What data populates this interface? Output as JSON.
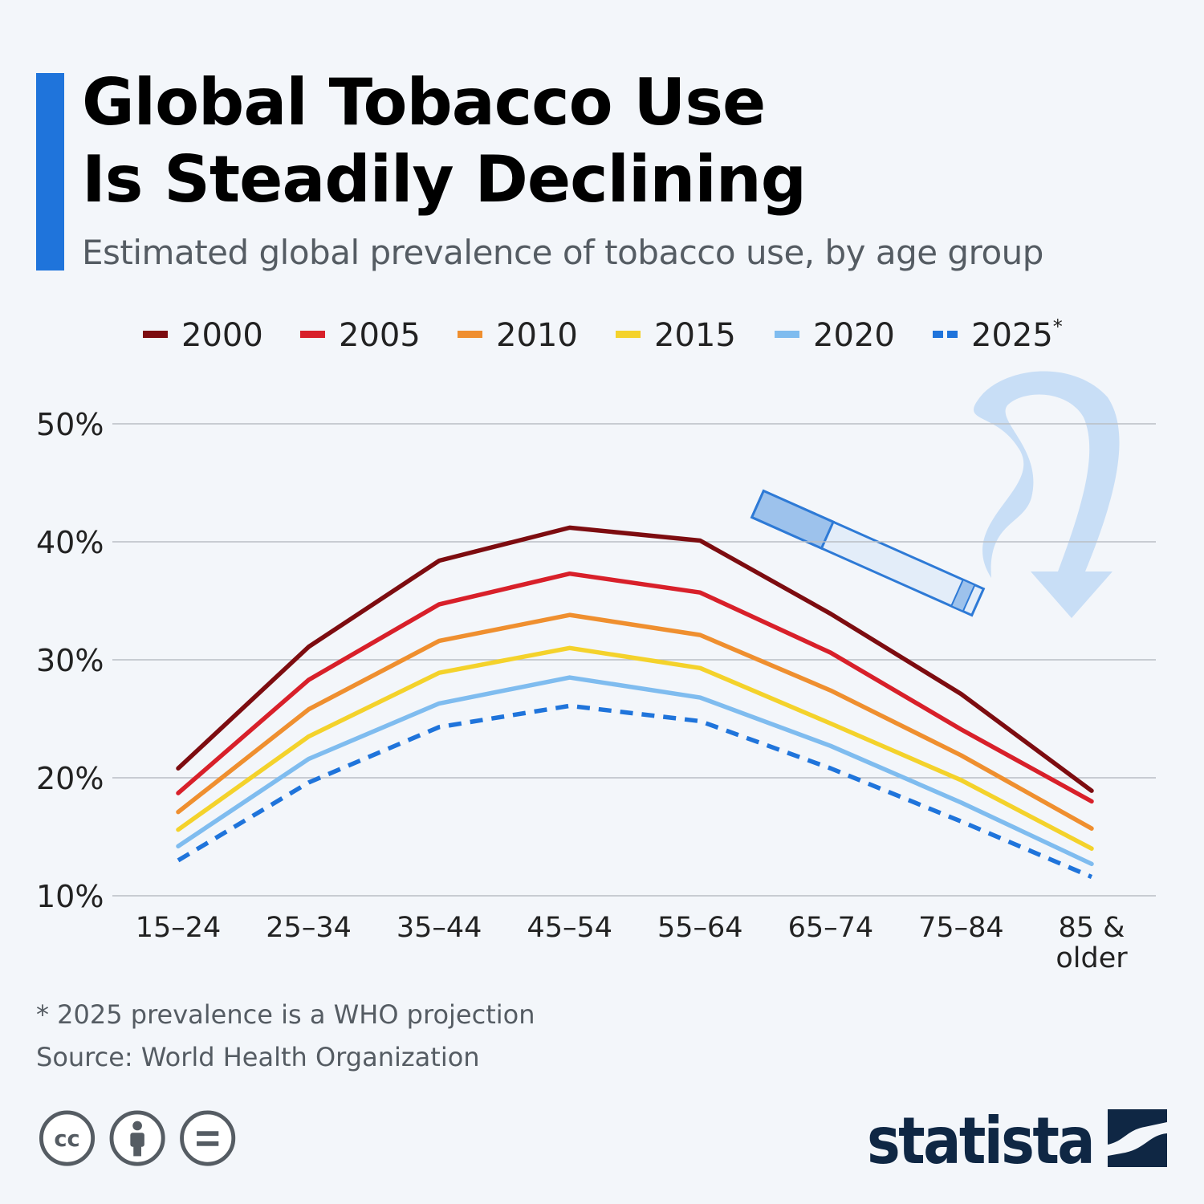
{
  "header": {
    "title_line1": "Global Tobacco Use",
    "title_line2": "Is Steadily Declining",
    "subtitle": "Estimated global prevalence of tobacco use, by age group"
  },
  "footer": {
    "note": "* 2025 prevalence is a WHO projection",
    "source": "Source: World Health Organization",
    "brand": "statista",
    "license_icons": [
      "cc-icon",
      "attribution-icon",
      "no-derivatives-icon"
    ]
  },
  "chart_data": {
    "type": "line",
    "title": "Global Tobacco Use Is Steadily Declining",
    "subtitle": "Estimated global prevalence of tobacco use, by age group",
    "categories": [
      "15–24",
      "25–34",
      "35–44",
      "45–54",
      "55–64",
      "65–74",
      "75–84",
      "85 & older"
    ],
    "category_lines": [
      [
        "15–24"
      ],
      [
        "25–34"
      ],
      [
        "35–44"
      ],
      [
        "45–54"
      ],
      [
        "55–64"
      ],
      [
        "65–74"
      ],
      [
        "75–84"
      ],
      [
        "85 &",
        "older"
      ]
    ],
    "y_ticks": [
      "10%",
      "20%",
      "30%",
      "40%",
      "50%"
    ],
    "ylim": [
      10,
      50
    ],
    "y_unit": "%",
    "grid": true,
    "legend_position": "top",
    "decoration": "cigarette-with-smoke-arrow-icon",
    "series": [
      {
        "name": "2000",
        "color": "#7d0c10",
        "dashed": false,
        "values": [
          20.8,
          31.1,
          38.4,
          41.2,
          40.1,
          33.9,
          27.1,
          18.9
        ]
      },
      {
        "name": "2005",
        "color": "#d8202a",
        "dashed": false,
        "values": [
          18.7,
          28.3,
          34.7,
          37.3,
          35.7,
          30.6,
          24.1,
          18.0
        ]
      },
      {
        "name": "2010",
        "color": "#ef8f2f",
        "dashed": false,
        "values": [
          17.1,
          25.8,
          31.6,
          33.8,
          32.1,
          27.4,
          21.9,
          15.7
        ]
      },
      {
        "name": "2015",
        "color": "#f4d22b",
        "dashed": false,
        "values": [
          15.6,
          23.5,
          28.9,
          31.0,
          29.3,
          24.6,
          19.8,
          14.0
        ]
      },
      {
        "name": "2020",
        "color": "#7fbcef",
        "dashed": false,
        "values": [
          14.2,
          21.6,
          26.3,
          28.5,
          26.8,
          22.7,
          17.9,
          12.7
        ]
      },
      {
        "name": "2025",
        "superscript": "*",
        "color": "#1f74db",
        "dashed": true,
        "values": [
          13.0,
          19.6,
          24.3,
          26.1,
          24.8,
          20.8,
          16.3,
          11.6
        ]
      }
    ]
  }
}
